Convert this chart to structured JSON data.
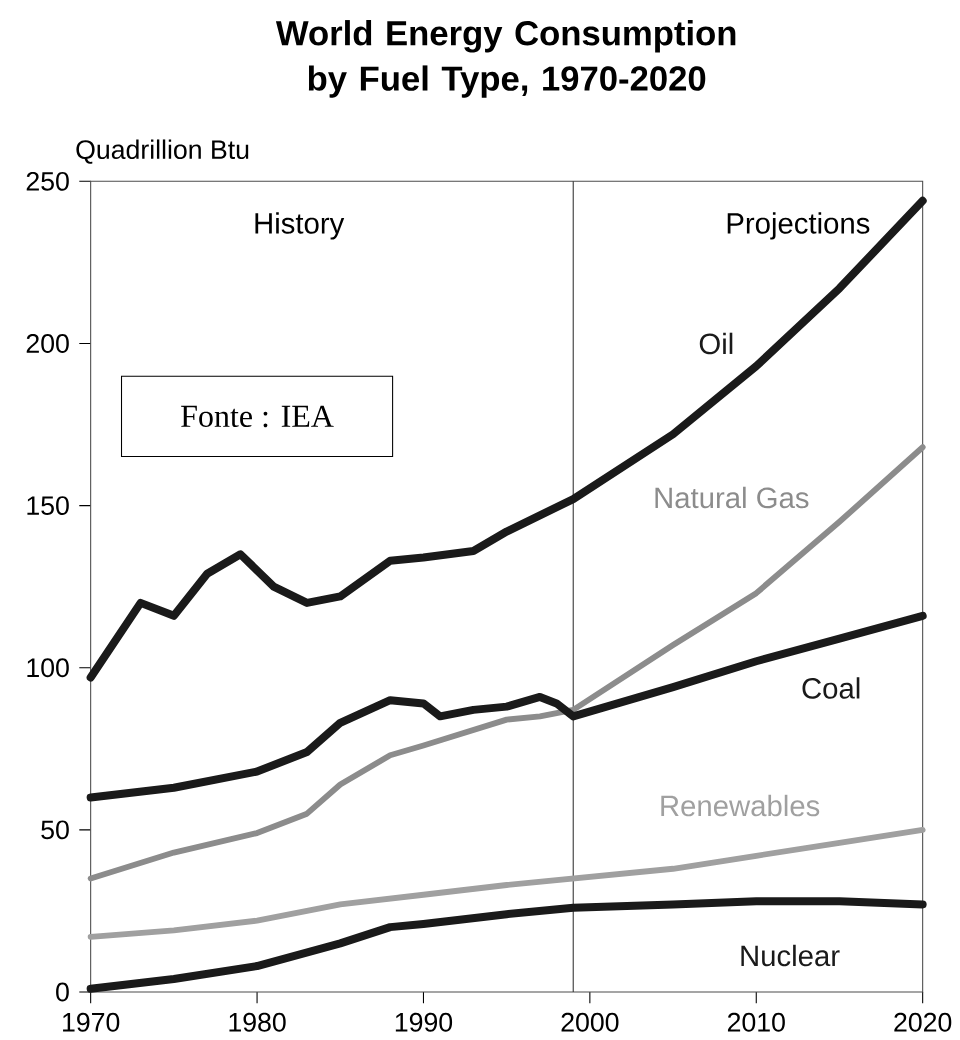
{
  "chart_data": {
    "type": "line",
    "title": "World Energy Consumption by Fuel Type, 1970-2020",
    "ylabel": "Quadrillion Btu",
    "xlim": [
      1970,
      2020
    ],
    "xticks": [
      1970,
      1980,
      1990,
      2000,
      2010,
      2020
    ],
    "ylim": [
      0,
      250
    ],
    "yticks": [
      0,
      50,
      100,
      150,
      200,
      250
    ],
    "grid": false,
    "marker": "none",
    "line_style": "solid",
    "ref_lines": [
      {
        "axis": "x",
        "value": 1999,
        "color": "#333333"
      }
    ],
    "annotations": [
      "History",
      "Projections",
      "Fonte : IEA"
    ],
    "series": [
      {
        "name": "Oil",
        "color": "#1a1a1a",
        "x": [
          1970,
          1973,
          1975,
          1977,
          1979,
          1981,
          1983,
          1985,
          1988,
          1990,
          1993,
          1995,
          1997,
          1999,
          2005,
          2010,
          2015,
          2020
        ],
        "values": [
          97,
          120,
          116,
          129,
          135,
          125,
          120,
          122,
          133,
          134,
          136,
          142,
          147,
          152,
          172,
          193,
          217,
          244
        ]
      },
      {
        "name": "Natural Gas",
        "color": "#8c8c8c",
        "x": [
          1970,
          1975,
          1980,
          1983,
          1985,
          1988,
          1990,
          1995,
          1997,
          1999,
          2005,
          2010,
          2015,
          2020
        ],
        "values": [
          35,
          43,
          49,
          55,
          64,
          73,
          76,
          84,
          85,
          87,
          107,
          123,
          145,
          168
        ]
      },
      {
        "name": "Coal",
        "color": "#1a1a1a",
        "x": [
          1970,
          1975,
          1980,
          1983,
          1985,
          1988,
          1990,
          1991,
          1993,
          1995,
          1997,
          1998,
          1999,
          2005,
          2010,
          2015,
          2020
        ],
        "values": [
          60,
          63,
          68,
          74,
          83,
          90,
          89,
          85,
          87,
          88,
          91,
          89,
          85,
          94,
          102,
          109,
          116
        ]
      },
      {
        "name": "Renewables",
        "color": "#a0a0a0",
        "x": [
          1970,
          1975,
          1980,
          1985,
          1990,
          1995,
          1999,
          2005,
          2010,
          2015,
          2020
        ],
        "values": [
          17,
          19,
          22,
          27,
          30,
          33,
          35,
          38,
          42,
          46,
          50
        ]
      },
      {
        "name": "Nuclear",
        "color": "#1a1a1a",
        "x": [
          1970,
          1975,
          1980,
          1985,
          1988,
          1990,
          1995,
          1999,
          2005,
          2010,
          2015,
          2020
        ],
        "values": [
          1,
          4,
          8,
          15,
          20,
          21,
          24,
          26,
          27,
          28,
          28,
          27
        ]
      }
    ]
  }
}
